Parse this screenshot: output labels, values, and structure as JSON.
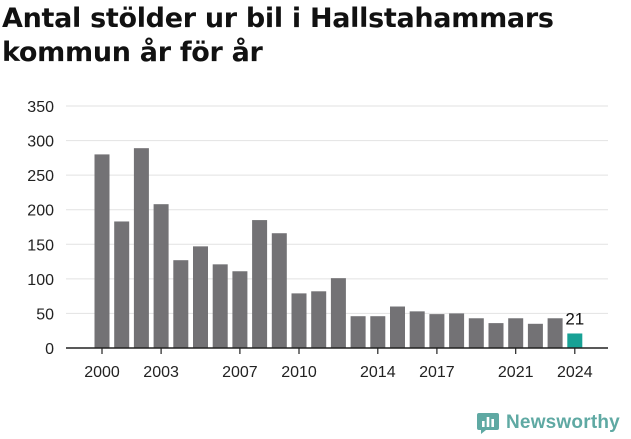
{
  "title": "Antal stölder ur bil i Hallstahammars kommun år för år",
  "brand": {
    "name": "Newsworthy",
    "logo_icon": "bar-chart-speech-bubble-icon",
    "color": "#5fa9a3"
  },
  "chart_data": {
    "type": "bar",
    "title": "Antal stölder ur bil i Hallstahammars kommun år för år",
    "xlabel": "",
    "ylabel": "",
    "categories": [
      2000,
      2001,
      2002,
      2003,
      2004,
      2005,
      2006,
      2007,
      2008,
      2009,
      2010,
      2011,
      2012,
      2013,
      2014,
      2015,
      2016,
      2017,
      2018,
      2019,
      2020,
      2021,
      2022,
      2023,
      2024
    ],
    "values": [
      280,
      183,
      289,
      208,
      127,
      147,
      121,
      111,
      185,
      166,
      79,
      82,
      101,
      46,
      46,
      60,
      53,
      49,
      50,
      43,
      36,
      43,
      35,
      43,
      21
    ],
    "x_tick_labels": [
      2000,
      2003,
      2007,
      2010,
      2014,
      2017,
      2021,
      2024
    ],
    "y_ticks": [
      0,
      50,
      100,
      150,
      200,
      250,
      300,
      350
    ],
    "ylim": [
      0,
      350
    ],
    "grid": true,
    "bar_color": "#737275",
    "highlight": {
      "category": 2024,
      "color": "#18a195",
      "label": "21"
    }
  }
}
